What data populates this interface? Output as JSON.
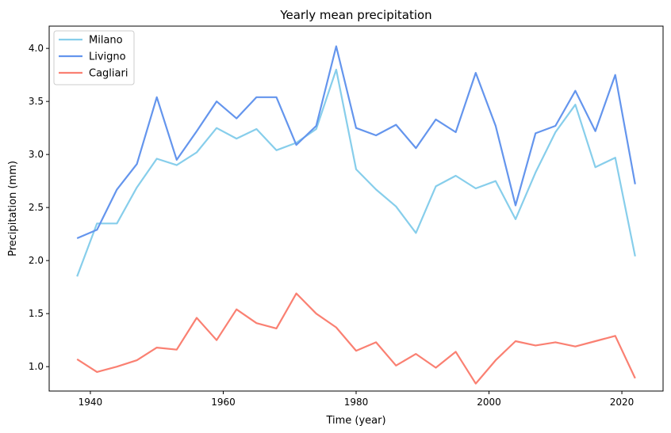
{
  "chart_data": {
    "type": "line",
    "title": "Yearly mean precipitation",
    "xlabel": "Time (year)",
    "ylabel": "Precipitation (mm)",
    "xlim": [
      1933.8,
      2026.2
    ],
    "ylim": [
      0.77,
      4.21
    ],
    "xticks": [
      1940,
      1960,
      1980,
      2000,
      2020
    ],
    "yticks": [
      1.0,
      1.5,
      2.0,
      2.5,
      3.0,
      3.5,
      4.0
    ],
    "grid": false,
    "legend_position": "top-left",
    "x": [
      1938,
      1941,
      1944,
      1947,
      1950,
      1953,
      1956,
      1959,
      1962,
      1965,
      1968,
      1971,
      1974,
      1977,
      1980,
      1983,
      1986,
      1989,
      1992,
      1995,
      1998,
      2001,
      2004,
      2007,
      2010,
      2013,
      2016,
      2019,
      2022
    ],
    "series": [
      {
        "name": "Milano",
        "color": "#87CEEB",
        "values": [
          1.85,
          2.35,
          2.35,
          2.69,
          2.96,
          2.9,
          3.02,
          3.25,
          3.15,
          3.24,
          3.04,
          3.11,
          3.24,
          3.8,
          2.86,
          2.67,
          2.51,
          2.26,
          2.7,
          2.8,
          2.68,
          2.75,
          2.39,
          2.83,
          3.21,
          3.47,
          2.88,
          2.97,
          2.04
        ]
      },
      {
        "name": "Livigno",
        "color": "#6495ED",
        "values": [
          2.21,
          2.29,
          2.67,
          2.91,
          3.54,
          2.95,
          3.22,
          3.5,
          3.34,
          3.54,
          3.54,
          3.09,
          3.27,
          4.02,
          3.25,
          3.18,
          3.28,
          3.06,
          3.33,
          3.21,
          3.77,
          3.27,
          2.52,
          3.2,
          3.27,
          3.6,
          3.22,
          3.75,
          2.72
        ]
      },
      {
        "name": "Cagliari",
        "color": "#FA8072",
        "values": [
          1.07,
          0.95,
          1.0,
          1.06,
          1.18,
          1.16,
          1.46,
          1.25,
          1.54,
          1.41,
          1.36,
          1.69,
          1.5,
          1.37,
          1.15,
          1.23,
          1.01,
          1.12,
          0.99,
          1.14,
          0.84,
          1.06,
          1.24,
          1.2,
          1.23,
          1.19,
          1.24,
          1.29,
          0.89
        ]
      }
    ]
  }
}
